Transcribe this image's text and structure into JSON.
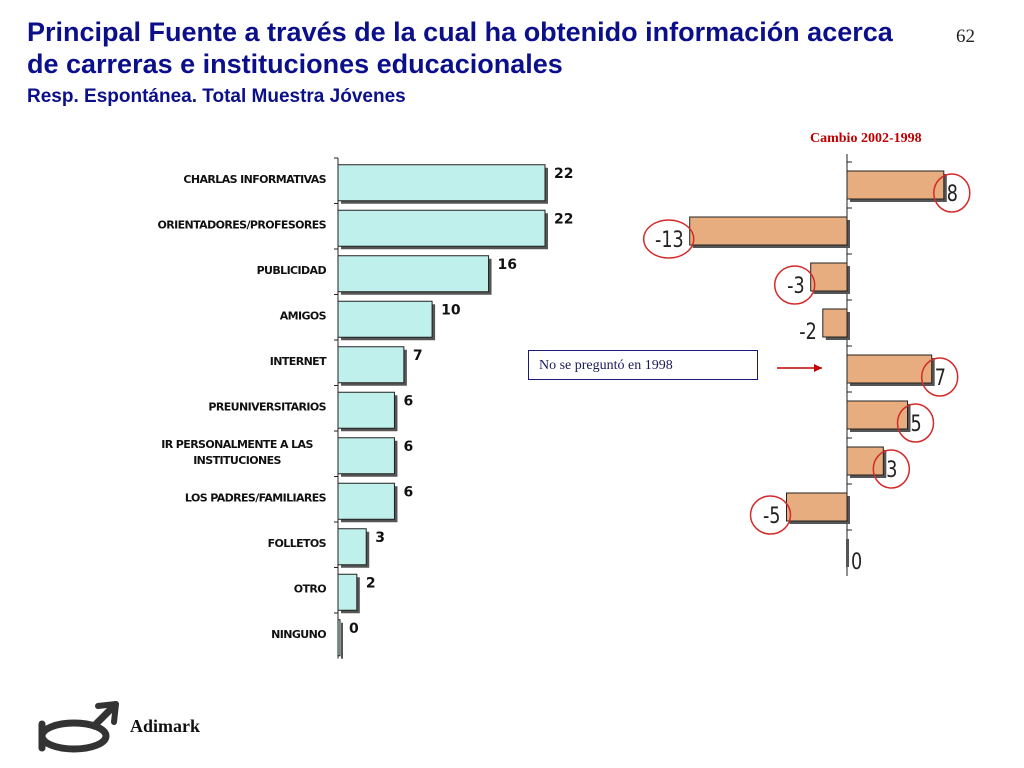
{
  "header": {
    "title": "Principal Fuente a través de la cual ha obtenido información acerca de carreras e instituciones educacionales",
    "subtitle": "Resp. Espontánea.  Total Muestra Jóvenes",
    "page_number": "62"
  },
  "note": {
    "text": "No se preguntó en 1998"
  },
  "brand": {
    "name": "Adimark"
  },
  "colors": {
    "bar_main": "#bff0ec",
    "bar_change": "#e8ad7e",
    "circle": "#d42a2a",
    "title": "#0b0f8a"
  },
  "chart_data": [
    {
      "type": "bar",
      "orientation": "horizontal",
      "categories": [
        "CHARLAS INFORMATIVAS",
        "ORIENTADORES/PROFESORES",
        "PUBLICIDAD",
        "AMIGOS",
        "INTERNET",
        "PREUNIVERSITARIOS",
        "IR PERSONALMENTE A LAS INSTITUCIONES",
        "LOS PADRES/FAMILIARES",
        "FOLLETOS",
        "OTRO",
        "NINGUNO"
      ],
      "values": [
        22,
        22,
        16,
        10,
        7,
        6,
        6,
        6,
        3,
        2,
        0
      ],
      "xlim": [
        0,
        22
      ]
    },
    {
      "type": "bar",
      "orientation": "horizontal",
      "title": "Cambio 2002-1998",
      "values": [
        8,
        -13,
        -3,
        -2,
        7,
        5,
        3,
        -5,
        0
      ],
      "circled": [
        true,
        true,
        true,
        false,
        true,
        true,
        true,
        true,
        false
      ],
      "xlim": [
        -13,
        8
      ]
    }
  ]
}
